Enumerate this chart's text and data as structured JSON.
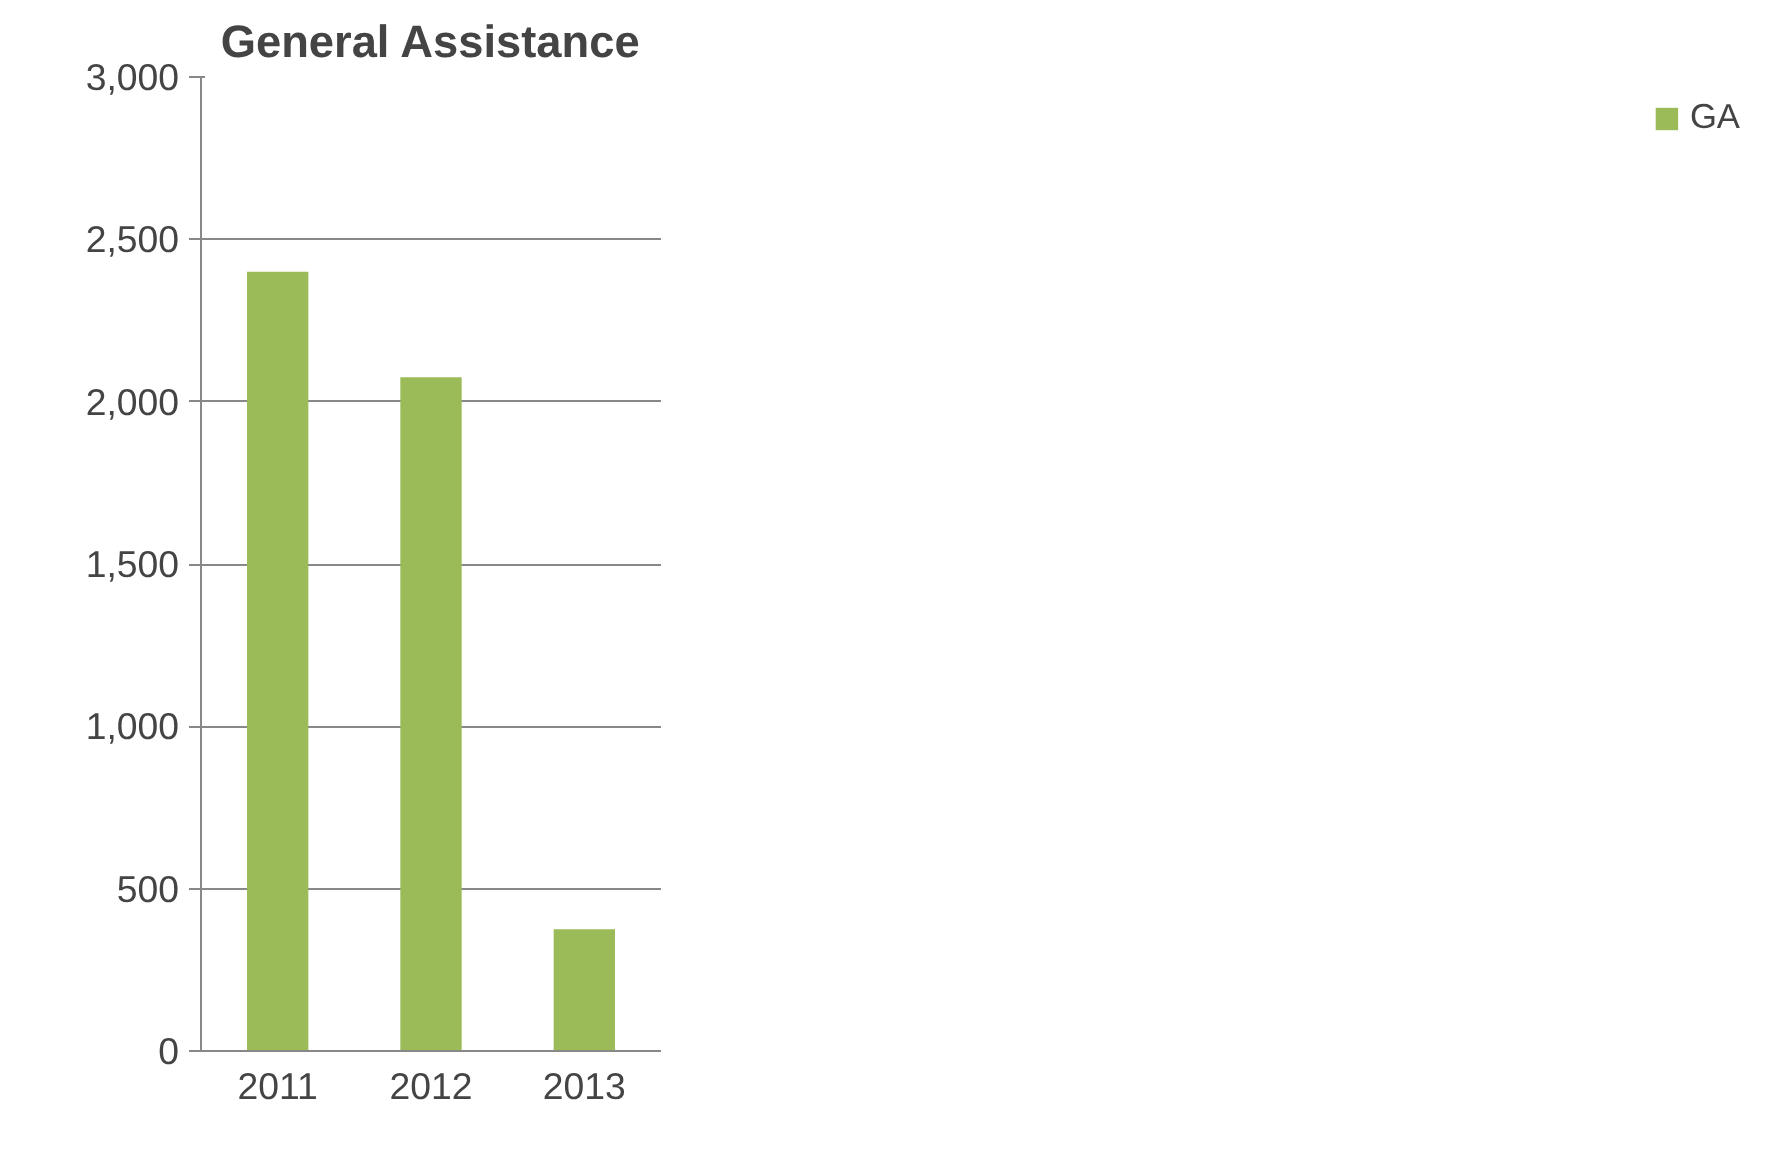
{
  "chart_data": {
    "type": "bar",
    "title": "General Assistance",
    "categories": [
      "2011",
      "2012",
      "2013"
    ],
    "series": [
      {
        "name": "GA",
        "color": "#9bbb59",
        "values": [
          2400,
          2075,
          375
        ]
      }
    ],
    "ylim": [
      0,
      3000
    ],
    "yticks": [
      {
        "value": 0,
        "label": "0"
      },
      {
        "value": 500,
        "label": "500"
      },
      {
        "value": 1000,
        "label": "1,000"
      },
      {
        "value": 1500,
        "label": "1,500"
      },
      {
        "value": 2000,
        "label": "2,000"
      },
      {
        "value": 2500,
        "label": "2,500"
      },
      {
        "value": 3000,
        "label": "3,000"
      }
    ],
    "grid": "y",
    "legend": "right"
  }
}
